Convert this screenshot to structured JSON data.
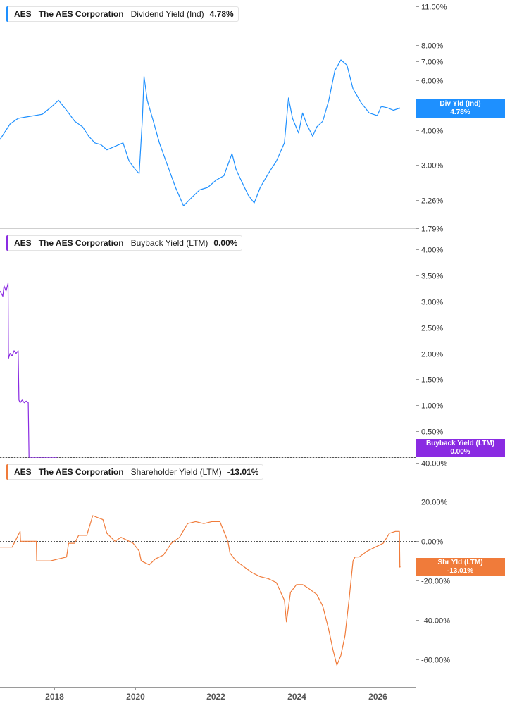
{
  "x_axis": {
    "ticks": [
      "2018",
      "2020",
      "2022",
      "2024",
      "2026"
    ],
    "tick_values": [
      2018,
      2020,
      2022,
      2024,
      2026
    ],
    "range": [
      2016.65,
      2026.95
    ]
  },
  "chart_data": [
    {
      "type": "line",
      "ticker": "AES",
      "company": "The AES Corporation",
      "metric": "Dividend Yield (Ind)",
      "legend_value": "4.78%",
      "flag_label": "Div Yld (Ind)",
      "flag_value": "4.78%",
      "color": "#1e90ff",
      "scale": "log",
      "ylim": [
        1.79,
        11.0
      ],
      "y_ticks": [
        11.0,
        8.0,
        7.0,
        6.0,
        4.0,
        3.0,
        2.26,
        1.79
      ],
      "y_tick_labels": [
        "11.00%",
        "8.00%",
        "7.00%",
        "6.00%",
        "4.00%",
        "3.00%",
        "2.26%",
        "1.79%"
      ],
      "zero_line": false,
      "series": [
        {
          "x": [
            2016.65,
            2016.9,
            2017.1,
            2017.3,
            2017.5,
            2017.7,
            2017.9,
            2018.1,
            2018.3,
            2018.5,
            2018.7,
            2018.85,
            2019.0,
            2019.15,
            2019.3,
            2019.5,
            2019.7,
            2019.85,
            2020.0,
            2020.1,
            2020.18,
            2020.22,
            2020.3,
            2020.45,
            2020.6,
            2020.8,
            2021.0,
            2021.2,
            2021.4,
            2021.6,
            2021.8,
            2022.0,
            2022.2,
            2022.4,
            2022.5,
            2022.6,
            2022.8,
            2022.95,
            2023.1,
            2023.3,
            2023.5,
            2023.7,
            2023.8,
            2023.9,
            2024.05,
            2024.15,
            2024.25,
            2024.4,
            2024.5,
            2024.65,
            2024.8,
            2024.95,
            2025.1,
            2025.25,
            2025.4,
            2025.5,
            2025.6,
            2025.8,
            2026.0,
            2026.1,
            2026.25,
            2026.4,
            2026.55
          ],
          "y": [
            3.7,
            4.2,
            4.4,
            4.45,
            4.5,
            4.55,
            4.8,
            5.1,
            4.7,
            4.3,
            4.1,
            3.8,
            3.6,
            3.55,
            3.4,
            3.5,
            3.6,
            3.1,
            2.9,
            2.8,
            4.4,
            6.2,
            5.1,
            4.3,
            3.6,
            3.0,
            2.5,
            2.15,
            2.3,
            2.45,
            2.5,
            2.65,
            2.75,
            3.3,
            2.9,
            2.7,
            2.35,
            2.2,
            2.5,
            2.8,
            3.1,
            3.6,
            5.2,
            4.4,
            3.9,
            4.6,
            4.2,
            3.8,
            4.1,
            4.3,
            5.1,
            6.5,
            7.1,
            6.8,
            5.6,
            5.3,
            5.0,
            4.6,
            4.5,
            4.85,
            4.8,
            4.7,
            4.78
          ]
        }
      ]
    },
    {
      "type": "line",
      "ticker": "AES",
      "company": "The AES Corporation",
      "metric": "Buyback Yield (LTM)",
      "legend_value": "0.00%",
      "flag_label": "Buyback Yield (LTM)",
      "flag_value": "0.00%",
      "color": "#8a2be2",
      "scale": "linear",
      "ylim": [
        0.0,
        4.3
      ],
      "y_ticks": [
        4.0,
        3.5,
        3.0,
        2.5,
        2.0,
        1.5,
        1.0,
        0.5
      ],
      "y_tick_labels": [
        "4.00%",
        "3.50%",
        "3.00%",
        "2.50%",
        "2.00%",
        "1.50%",
        "1.00%",
        "0.50%"
      ],
      "zero_line": true,
      "series": [
        {
          "x": [
            2016.65,
            2016.72,
            2016.75,
            2016.8,
            2016.85,
            2016.86,
            2016.9,
            2016.95,
            2017.0,
            2017.05,
            2017.1,
            2017.12,
            2017.15,
            2017.2,
            2017.25,
            2017.3,
            2017.35,
            2017.37,
            2017.5,
            2017.7,
            2017.9,
            2018.05
          ],
          "y": [
            3.2,
            3.1,
            3.3,
            3.2,
            3.35,
            1.9,
            2.0,
            1.95,
            2.05,
            2.0,
            2.05,
            1.1,
            1.05,
            1.1,
            1.05,
            1.08,
            1.05,
            0.0,
            0.0,
            0.0,
            0.0,
            0.0
          ]
        }
      ]
    },
    {
      "type": "line",
      "ticker": "AES",
      "company": "The AES Corporation",
      "metric": "Shareholder Yield (LTM)",
      "legend_value": "-13.01%",
      "flag_label": "Shr Yld (LTM)",
      "flag_value": "-13.01%",
      "color": "#f07b3a",
      "scale": "linear",
      "ylim": [
        -74.0,
        42.0
      ],
      "y_ticks": [
        40,
        20,
        0,
        -20,
        -40,
        -60
      ],
      "y_tick_labels": [
        "40.00%",
        "20.00%",
        "0.00%",
        "-20.00%",
        "-40.00%",
        "-60.00%"
      ],
      "zero_line": true,
      "series": [
        {
          "x": [
            2016.65,
            2016.95,
            2017.15,
            2017.16,
            2017.4,
            2017.55,
            2017.56,
            2017.9,
            2018.3,
            2018.35,
            2018.5,
            2018.6,
            2018.8,
            2018.95,
            2019.2,
            2019.3,
            2019.5,
            2019.65,
            2019.95,
            2020.1,
            2020.15,
            2020.35,
            2020.5,
            2020.7,
            2020.9,
            2021.1,
            2021.3,
            2021.5,
            2021.7,
            2021.9,
            2022.1,
            2022.3,
            2022.35,
            2022.5,
            2022.7,
            2022.9,
            2023.1,
            2023.3,
            2023.5,
            2023.7,
            2023.75,
            2023.85,
            2024.0,
            2024.15,
            2024.3,
            2024.5,
            2024.65,
            2024.8,
            2024.9,
            2025.0,
            2025.1,
            2025.2,
            2025.3,
            2025.4,
            2025.45,
            2025.55,
            2025.75,
            2025.95,
            2026.15,
            2026.3,
            2026.45,
            2026.55,
            2026.56
          ],
          "y": [
            -3,
            -3,
            5,
            0,
            0,
            0,
            -10,
            -10,
            -8,
            -1,
            -1,
            3,
            3,
            13,
            11,
            4,
            0,
            2,
            -1,
            -5,
            -10,
            -12,
            -9,
            -7,
            -1,
            2,
            9,
            10,
            9,
            10,
            10,
            0,
            -6,
            -10,
            -13,
            -16,
            -18,
            -19,
            -21,
            -30,
            -41,
            -26,
            -22,
            -22,
            -24,
            -27,
            -33,
            -45,
            -55,
            -63,
            -58,
            -48,
            -30,
            -10,
            -8,
            -8,
            -5,
            -3,
            -1,
            4,
            5,
            5,
            -13.01
          ]
        }
      ]
    }
  ]
}
